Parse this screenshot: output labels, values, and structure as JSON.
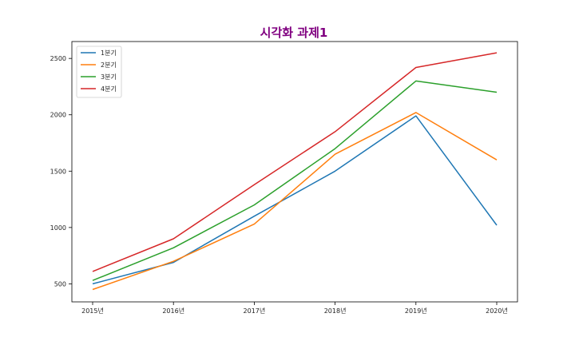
{
  "chart_data": {
    "type": "line",
    "title": "시각화 과제1",
    "title_color": "#800080",
    "xlabel": "",
    "ylabel": "",
    "categories": [
      "2015년",
      "2016년",
      "2017년",
      "2018년",
      "2019년",
      "2020년"
    ],
    "yticks": [
      500,
      1000,
      1500,
      2000,
      2500
    ],
    "ylim": [
      340,
      2650
    ],
    "grid": false,
    "legend_position": "top-left",
    "series": [
      {
        "name": "1분기",
        "color": "#1f77b4",
        "values": [
          500,
          690,
          1100,
          1500,
          1990,
          1020
        ]
      },
      {
        "name": "2분기",
        "color": "#ff7f0e",
        "values": [
          450,
          700,
          1030,
          1650,
          2020,
          1600
        ]
      },
      {
        "name": "3분기",
        "color": "#2ca02c",
        "values": [
          530,
          820,
          1200,
          1700,
          2300,
          2200
        ]
      },
      {
        "name": "4분기",
        "color": "#d62728",
        "values": [
          610,
          900,
          1380,
          1850,
          2420,
          2550
        ]
      }
    ]
  }
}
